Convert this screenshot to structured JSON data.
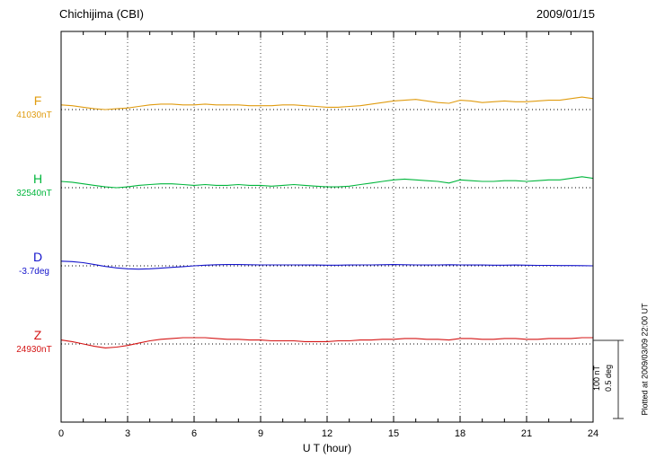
{
  "header": {
    "station_title": "Chichijima (CBI)",
    "date": "2009/01/15"
  },
  "axis": {
    "xlabel": "U T (hour)"
  },
  "scale_bar_labels": {
    "line1": "100 nT",
    "line2": "0.5 deg"
  },
  "plot_note": "Plotted at 2009/03/09 22:00 UT",
  "chart_data": {
    "type": "line",
    "title": "Chichijima (CBI) geomagnetic variations 2009/01/15",
    "xlabel": "U T (hour)",
    "xlim": [
      0,
      24
    ],
    "xticks": [
      0,
      3,
      6,
      9,
      12,
      15,
      18,
      21,
      24
    ],
    "x_step_hours": 0.5,
    "grid": "dotted vertical lines at 3-hour ticks; dotted horizontal baseline per trace",
    "scale_bar": {
      "nT": 100,
      "deg": 0.5
    },
    "series": [
      {
        "name": "F",
        "unit": "nT",
        "baseline_value": 41030,
        "baseline_label": "41030nT",
        "color": "#e09c10",
        "deviation_from_baseline": [
          6,
          5,
          3,
          1,
          0,
          1,
          2,
          4,
          6,
          7,
          7,
          6,
          6,
          7,
          6,
          6,
          6,
          5,
          5,
          5,
          6,
          6,
          5,
          4,
          3,
          3,
          4,
          5,
          7,
          9,
          11,
          12,
          13,
          11,
          9,
          8,
          12,
          11,
          9,
          10,
          11,
          10,
          10,
          11,
          12,
          12,
          14,
          16,
          14
        ]
      },
      {
        "name": "H",
        "unit": "nT",
        "baseline_value": 32540,
        "baseline_label": "32540nT",
        "color": "#00b63c",
        "deviation_from_baseline": [
          8,
          7,
          5,
          3,
          1,
          0,
          1,
          3,
          4,
          5,
          5,
          4,
          3,
          4,
          3,
          3,
          4,
          3,
          3,
          2,
          3,
          4,
          3,
          2,
          1,
          1,
          2,
          4,
          6,
          8,
          10,
          11,
          10,
          9,
          8,
          6,
          10,
          9,
          8,
          8,
          9,
          9,
          8,
          9,
          10,
          10,
          12,
          14,
          12
        ]
      },
      {
        "name": "D",
        "unit": "deg",
        "baseline_value": -3.7,
        "baseline_label": "-3.7deg",
        "color": "#1414cc",
        "deviation_from_baseline": [
          0.03,
          0.027,
          0.02,
          0.008,
          -0.004,
          -0.013,
          -0.019,
          -0.021,
          -0.019,
          -0.015,
          -0.01,
          -0.005,
          0.0,
          0.004,
          0.007,
          0.008,
          0.008,
          0.007,
          0.006,
          0.006,
          0.006,
          0.006,
          0.005,
          0.005,
          0.004,
          0.004,
          0.005,
          0.006,
          0.006,
          0.007,
          0.008,
          0.007,
          0.006,
          0.005,
          0.006,
          0.007,
          0.006,
          0.005,
          0.005,
          0.004,
          0.004,
          0.005,
          0.004,
          0.003,
          0.003,
          0.002,
          0.002,
          0.001,
          0.0
        ]
      },
      {
        "name": "Z",
        "unit": "nT",
        "baseline_value": 24930,
        "baseline_label": "24930nT",
        "color": "#d41414",
        "deviation_from_baseline": [
          5,
          3,
          0,
          -3,
          -5,
          -4,
          -2,
          1,
          4,
          6,
          7,
          8,
          8,
          8,
          7,
          6,
          6,
          5,
          5,
          4,
          4,
          4,
          3,
          3,
          3,
          4,
          4,
          5,
          5,
          6,
          6,
          7,
          7,
          6,
          6,
          5,
          7,
          7,
          6,
          6,
          7,
          7,
          6,
          6,
          7,
          7,
          7,
          8,
          8
        ]
      }
    ]
  }
}
